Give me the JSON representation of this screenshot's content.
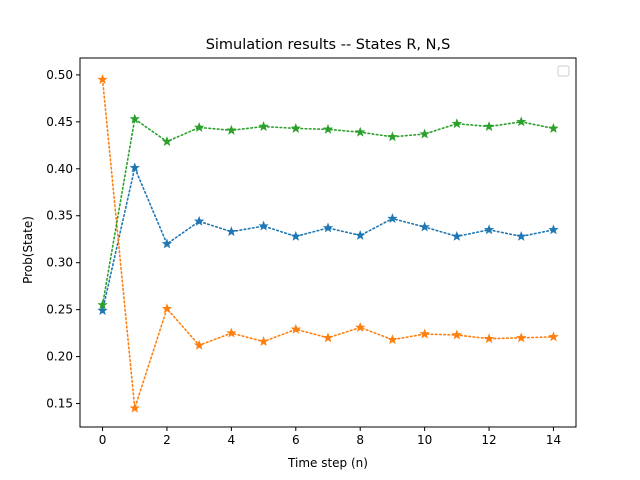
{
  "chart_data": {
    "type": "line",
    "title": "Simulation results -- States R, N,S",
    "xlabel": "Time step (n)",
    "ylabel": "Prob(State)",
    "xlim": [
      -0.7,
      14.7
    ],
    "ylim": [
      0.125,
      0.518
    ],
    "x_ticks": [
      "0",
      "2",
      "4",
      "6",
      "8",
      "10",
      "12",
      "14"
    ],
    "y_ticks": [
      "0.15",
      "0.20",
      "0.25",
      "0.30",
      "0.35",
      "0.40",
      "0.45",
      "0.50"
    ],
    "grid": false,
    "legend": "top-right (empty)",
    "marker": "star",
    "line_style": "dotted",
    "x": [
      0,
      1,
      2,
      3,
      4,
      5,
      6,
      7,
      8,
      9,
      10,
      11,
      12,
      13,
      14
    ],
    "series": [
      {
        "color": "#1f77b4",
        "values": [
          0.249,
          0.401,
          0.32,
          0.344,
          0.333,
          0.339,
          0.328,
          0.337,
          0.329,
          0.347,
          0.338,
          0.328,
          0.335,
          0.328,
          0.335
        ]
      },
      {
        "color": "#ff7f0e",
        "values": [
          0.495,
          0.145,
          0.251,
          0.212,
          0.225,
          0.216,
          0.229,
          0.22,
          0.231,
          0.218,
          0.224,
          0.223,
          0.219,
          0.22,
          0.221
        ]
      },
      {
        "color": "#2ca02c",
        "values": [
          0.255,
          0.453,
          0.429,
          0.444,
          0.441,
          0.445,
          0.443,
          0.442,
          0.439,
          0.434,
          0.437,
          0.448,
          0.445,
          0.45,
          0.443
        ]
      }
    ]
  }
}
